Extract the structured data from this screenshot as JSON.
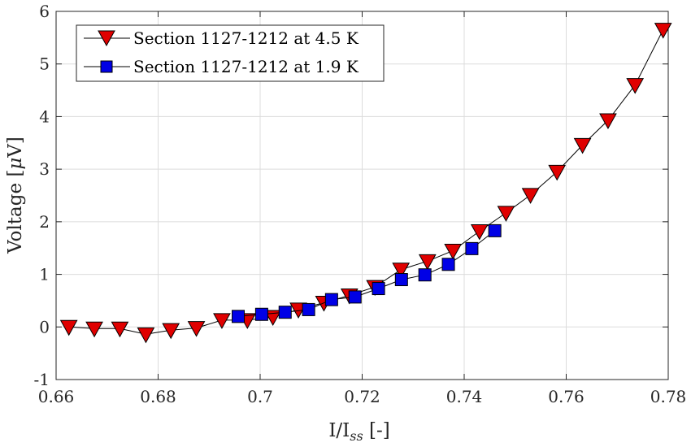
{
  "chart_data": {
    "type": "line",
    "xlabel_main": "I/I",
    "xlabel_sub": "ss",
    "xlabel_unit": " [-]",
    "ylabel_main": "Voltage [",
    "ylabel_mu": "μ",
    "ylabel_unit": "V]",
    "xlim": [
      0.66,
      0.78
    ],
    "ylim": [
      -1,
      6
    ],
    "xticks": [
      0.66,
      0.68,
      0.7,
      0.72,
      0.74,
      0.76,
      0.78
    ],
    "xtick_labels": [
      "0.66",
      "0.68",
      "0.7",
      "0.72",
      "0.74",
      "0.76",
      "0.78"
    ],
    "yticks": [
      -1,
      0,
      1,
      2,
      3,
      4,
      5,
      6
    ],
    "ytick_labels": [
      "-1",
      "0",
      "1",
      "2",
      "3",
      "4",
      "5",
      "6"
    ],
    "grid": true,
    "legend_position": "top-left",
    "series": [
      {
        "name": "Section 1127-1212 at 4.5 K",
        "marker": "triangle-down",
        "color": "#e00000",
        "x": [
          0.6625,
          0.6675,
          0.6725,
          0.6776,
          0.6825,
          0.6875,
          0.6925,
          0.6975,
          0.7025,
          0.7075,
          0.7125,
          0.7175,
          0.7225,
          0.7276,
          0.7328,
          0.7378,
          0.743,
          0.7482,
          0.753,
          0.7582,
          0.7632,
          0.7682,
          0.7735,
          0.779
        ],
        "y": [
          0.0,
          -0.03,
          -0.03,
          -0.14,
          -0.06,
          -0.02,
          0.13,
          0.13,
          0.19,
          0.33,
          0.46,
          0.6,
          0.76,
          1.09,
          1.25,
          1.45,
          1.82,
          2.17,
          2.51,
          2.95,
          3.46,
          3.93,
          4.6,
          5.65
        ]
      },
      {
        "name": "Section 1127-1212 at 1.9 K",
        "marker": "square",
        "color": "#0000e6",
        "x": [
          0.6957,
          0.7003,
          0.7049,
          0.7095,
          0.714,
          0.7186,
          0.7232,
          0.7277,
          0.7323,
          0.7369,
          0.7415,
          0.746
        ],
        "y": [
          0.2,
          0.24,
          0.28,
          0.33,
          0.52,
          0.57,
          0.73,
          0.9,
          0.99,
          1.19,
          1.49,
          1.83
        ]
      }
    ]
  }
}
